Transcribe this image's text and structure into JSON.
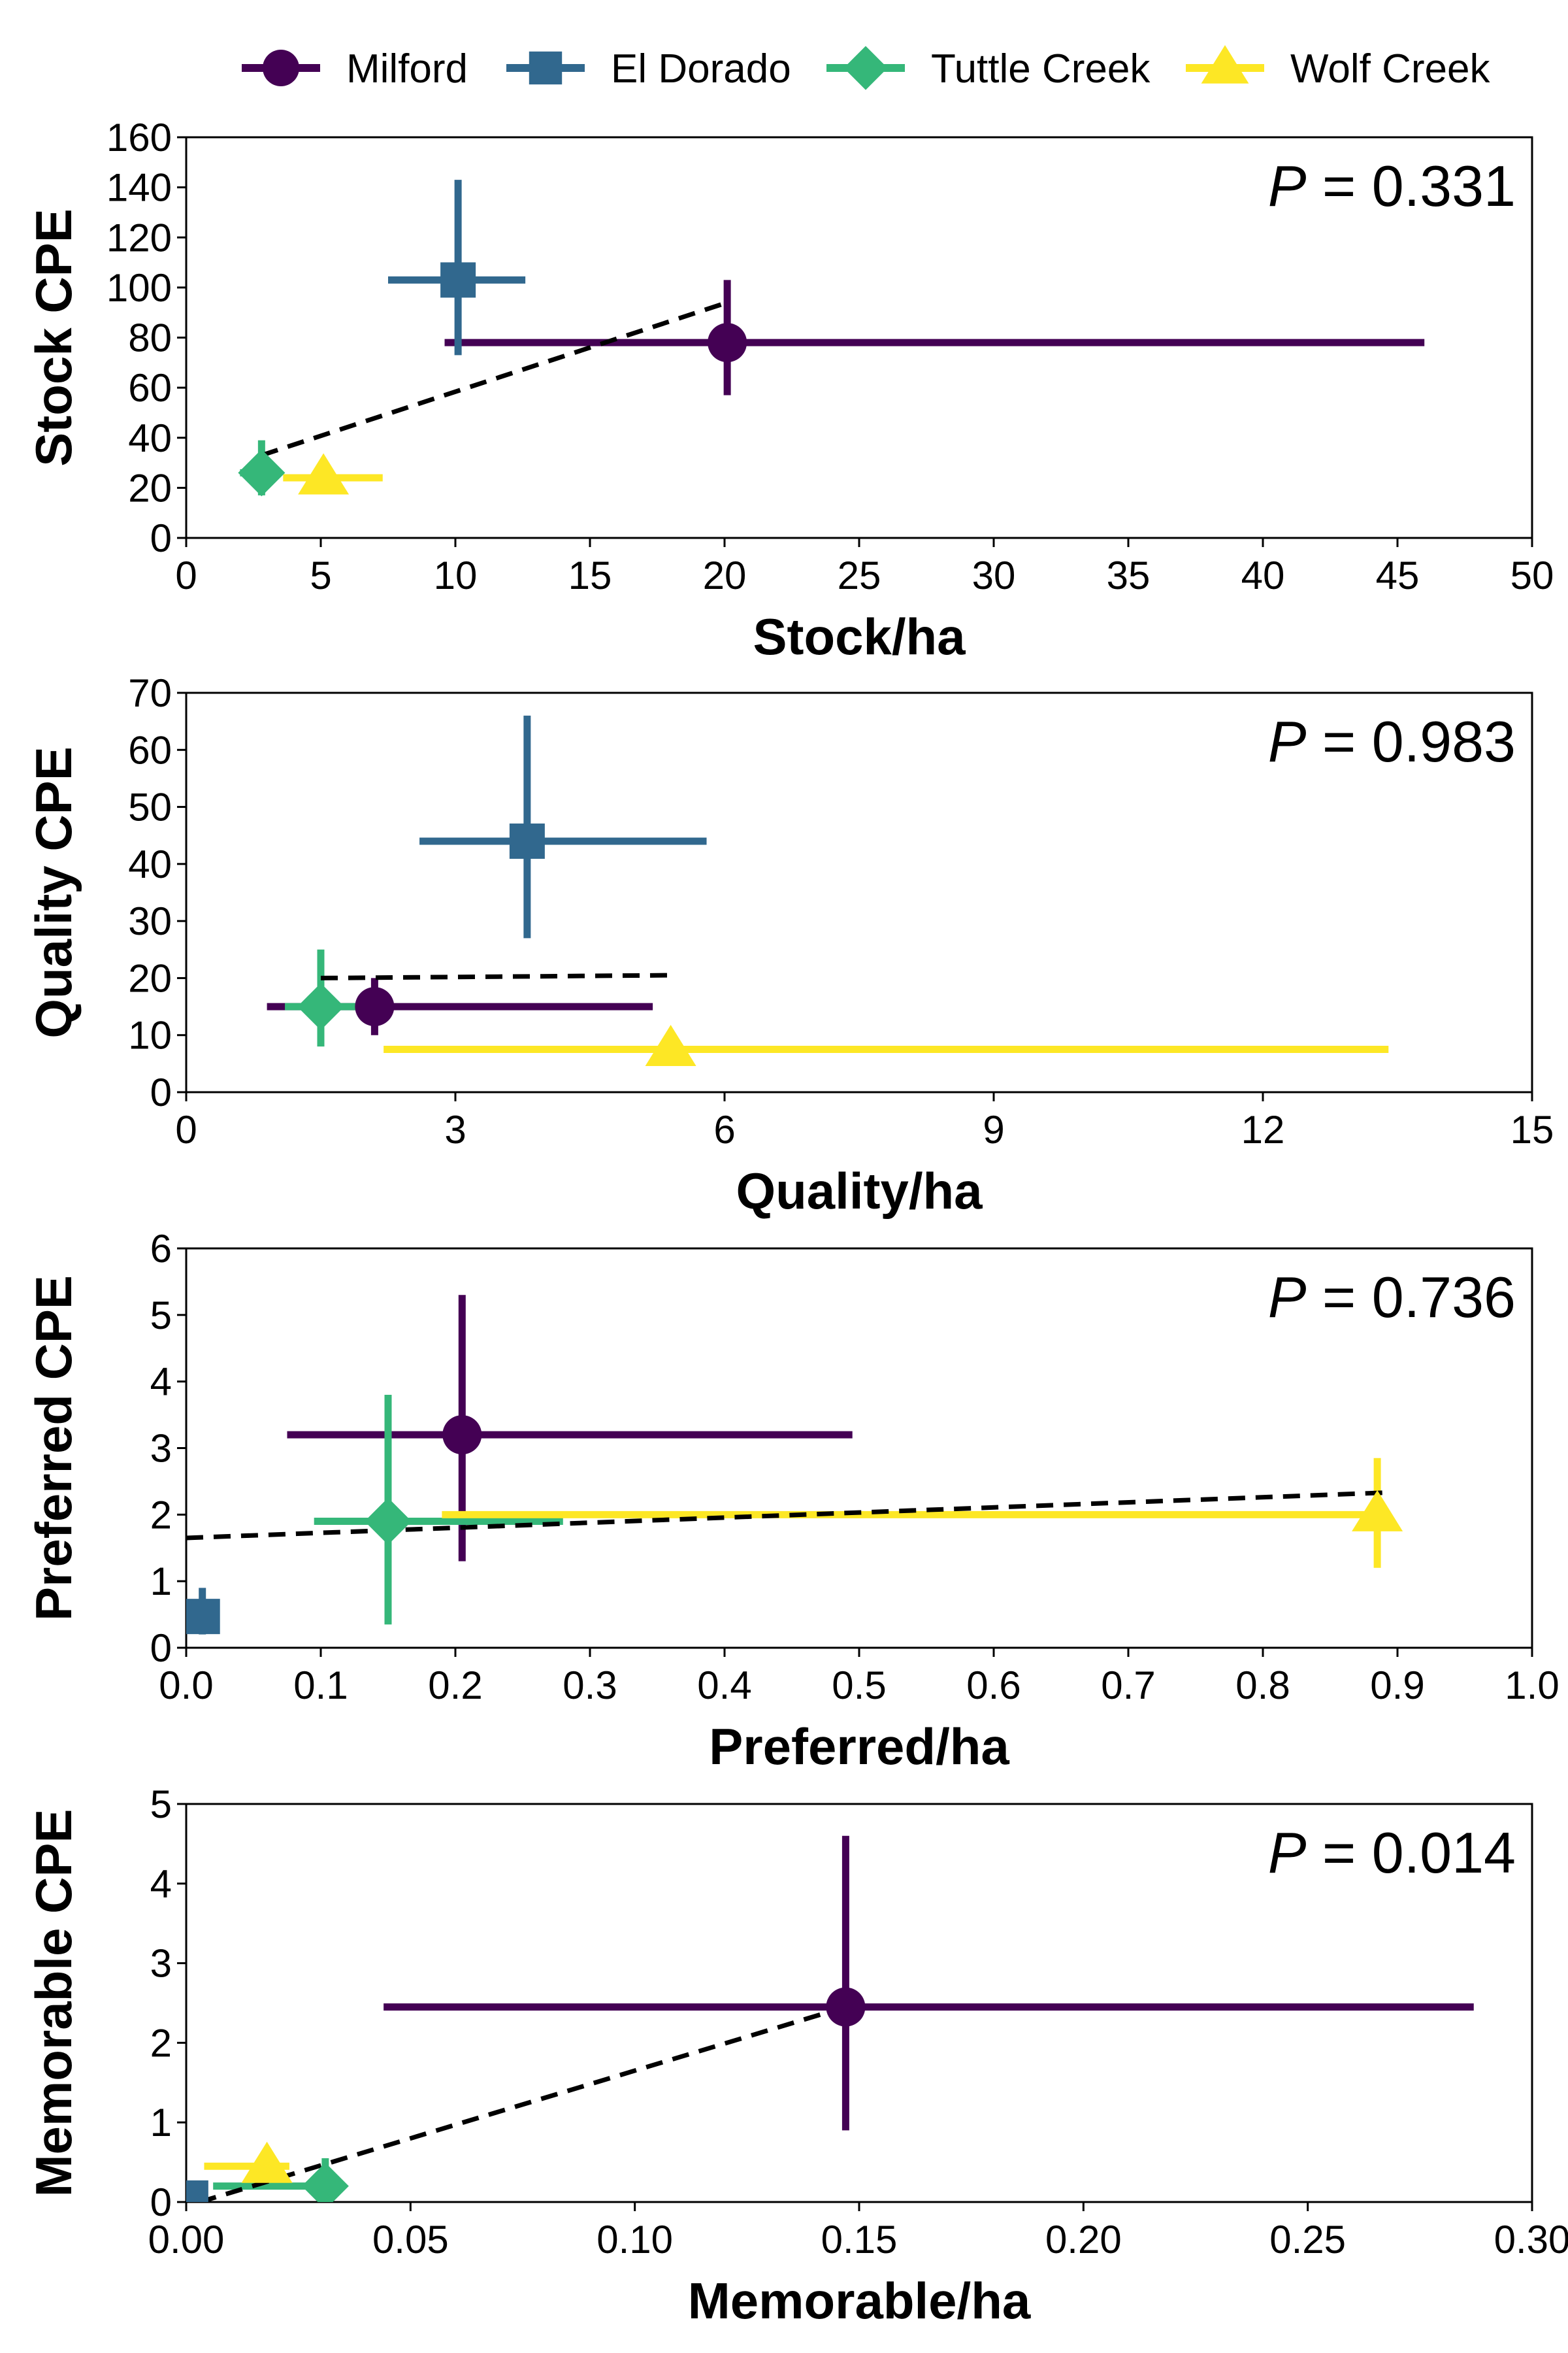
{
  "legend": [
    {
      "name": "Milford",
      "color": "#440154",
      "marker": "circle"
    },
    {
      "name": "El Dorado",
      "color": "#31688E",
      "marker": "square"
    },
    {
      "name": "Tuttle Creek",
      "color": "#35B779",
      "marker": "diamond"
    },
    {
      "name": "Wolf Creek",
      "color": "#FDE725",
      "marker": "triangle"
    }
  ],
  "chart_data": [
    {
      "type": "scatter",
      "xlabel": "Stock/ha",
      "ylabel": "Stock CPE",
      "p_value": "0.331",
      "xlim": [
        0,
        50
      ],
      "ylim": [
        0,
        160
      ],
      "xticks": [
        0,
        5,
        10,
        15,
        20,
        25,
        30,
        35,
        40,
        45,
        50
      ],
      "yticks": [
        0,
        20,
        40,
        60,
        80,
        100,
        120,
        140,
        160
      ],
      "tick_format": "int",
      "series": [
        {
          "name": "Milford",
          "x": 20.1,
          "y": 78,
          "x_err": [
            9.6,
            46.0
          ],
          "y_err": [
            57,
            103
          ]
        },
        {
          "name": "El Dorado",
          "x": 10.1,
          "y": 103,
          "x_err": [
            7.5,
            12.6
          ],
          "y_err": [
            73,
            143
          ]
        },
        {
          "name": "Tuttle Creek",
          "x": 2.8,
          "y": 26,
          "x_err": [
            2.0,
            3.5
          ],
          "y_err": [
            17,
            39
          ]
        },
        {
          "name": "Wolf Creek",
          "x": 5.1,
          "y": 24,
          "x_err": [
            3.6,
            7.3
          ],
          "y_err": [
            20,
            28
          ]
        }
      ],
      "trend": {
        "x": [
          2.8,
          20.1
        ],
        "y": [
          33,
          94
        ]
      }
    },
    {
      "type": "scatter",
      "xlabel": "Quality/ha",
      "ylabel": "Quality CPE",
      "p_value": "0.983",
      "xlim": [
        0,
        15
      ],
      "ylim": [
        0,
        70
      ],
      "xticks": [
        0,
        3,
        6,
        9,
        12,
        15
      ],
      "yticks": [
        0,
        10,
        20,
        30,
        40,
        50,
        60,
        70
      ],
      "tick_format": "int",
      "series": [
        {
          "name": "Milford",
          "x": 2.1,
          "y": 15,
          "x_err": [
            0.9,
            5.2
          ],
          "y_err": [
            10,
            20
          ]
        },
        {
          "name": "El Dorado",
          "x": 3.8,
          "y": 44,
          "x_err": [
            2.6,
            5.8
          ],
          "y_err": [
            27,
            66
          ]
        },
        {
          "name": "Tuttle Creek",
          "x": 1.5,
          "y": 15,
          "x_err": [
            1.1,
            1.9
          ],
          "y_err": [
            8,
            25
          ]
        },
        {
          "name": "Wolf Creek",
          "x": 5.4,
          "y": 7.5,
          "x_err": [
            2.2,
            13.4
          ],
          "y_err": [
            6,
            9
          ]
        }
      ],
      "trend": {
        "x": [
          1.5,
          5.4
        ],
        "y": [
          20,
          20.5
        ]
      }
    },
    {
      "type": "scatter",
      "xlabel": "Preferred/ha",
      "ylabel": "Preferred CPE",
      "p_value": "0.736",
      "xlim": [
        0,
        1.0
      ],
      "ylim": [
        0,
        6
      ],
      "xticks": [
        0.0,
        0.1,
        0.2,
        0.3,
        0.4,
        0.5,
        0.6,
        0.7,
        0.8,
        0.9,
        1.0
      ],
      "yticks": [
        0,
        1,
        2,
        3,
        4,
        5,
        6
      ],
      "tick_format": "x1",
      "series": [
        {
          "name": "Milford",
          "x": 0.205,
          "y": 3.2,
          "x_err": [
            0.075,
            0.495
          ],
          "y_err": [
            1.3,
            5.3
          ]
        },
        {
          "name": "El Dorado",
          "x": 0.012,
          "y": 0.47,
          "x_err": [
            0.008,
            0.016
          ],
          "y_err": [
            0.2,
            0.9
          ]
        },
        {
          "name": "Tuttle Creek",
          "x": 0.15,
          "y": 1.9,
          "x_err": [
            0.095,
            0.28
          ],
          "y_err": [
            0.35,
            3.8
          ]
        },
        {
          "name": "Wolf Creek",
          "x": 0.885,
          "y": 2.0,
          "x_err": [
            0.19,
            0.885
          ],
          "y_err": [
            1.2,
            2.85
          ]
        }
      ],
      "trend": {
        "x": [
          0.0,
          0.89
        ],
        "y": [
          1.65,
          2.33
        ]
      }
    },
    {
      "type": "scatter",
      "xlabel": "Memorable/ha",
      "ylabel": "Memorable CPE",
      "p_value": "0.014",
      "xlim": [
        0,
        0.3
      ],
      "ylim": [
        0,
        5
      ],
      "xticks": [
        0.0,
        0.05,
        0.1,
        0.15,
        0.2,
        0.25,
        0.3
      ],
      "yticks": [
        0,
        1,
        2,
        3,
        4,
        5
      ],
      "tick_format": "x2",
      "series": [
        {
          "name": "Milford",
          "x": 0.147,
          "y": 2.45,
          "x_err": [
            0.044,
            0.287
          ],
          "y_err": [
            0.9,
            4.6
          ]
        },
        {
          "name": "El Dorado",
          "x": 0.001,
          "y": 0.05,
          "x_err": [
            0.0,
            0.002
          ],
          "y_err": [
            0.0,
            0.1
          ]
        },
        {
          "name": "Tuttle Creek",
          "x": 0.031,
          "y": 0.2,
          "x_err": [
            0.006,
            0.034
          ],
          "y_err": [
            0.0,
            0.55
          ]
        },
        {
          "name": "Wolf Creek",
          "x": 0.018,
          "y": 0.45,
          "x_err": [
            0.004,
            0.023
          ],
          "y_err": [
            0.3,
            0.6
          ]
        }
      ],
      "trend": {
        "x": [
          0.003,
          0.147
        ],
        "y": [
          0.0,
          2.45
        ]
      }
    }
  ]
}
